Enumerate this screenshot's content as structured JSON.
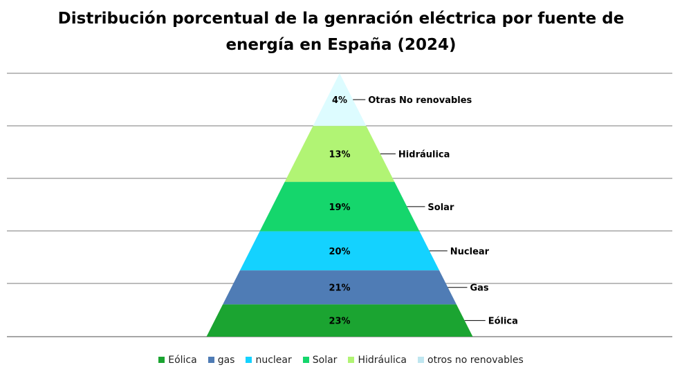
{
  "chart_data": {
    "type": "pyramid",
    "title_lines": [
      "Distribución porcentual de la genración eléctrica por fuente de",
      "energía en España (2024)"
    ],
    "segments_bottom_to_top": [
      {
        "label": "Eólica",
        "value": 23,
        "display": "23%",
        "color": "#1BA431"
      },
      {
        "label": "Gas",
        "value": 21,
        "display": "21%",
        "color": "#4F7CB5"
      },
      {
        "label": "Nuclear",
        "value": 20,
        "display": "20%",
        "color": "#14D2FF"
      },
      {
        "label": "Solar",
        "value": 19,
        "display": "19%",
        "color": "#15D66C"
      },
      {
        "label": "Hidráulica",
        "value": 13,
        "display": "13%",
        "color": "#B1F474"
      },
      {
        "label": "Otras No renovables",
        "value": 4,
        "display": "4%",
        "color": "#DDFCFF"
      }
    ],
    "legend": [
      {
        "label": "Eólica",
        "color": "#1BA431"
      },
      {
        "label": "gas",
        "color": "#4F7CB5"
      },
      {
        "label": "nuclear",
        "color": "#14D2FF"
      },
      {
        "label": "Solar",
        "color": "#15D66C"
      },
      {
        "label": "Hidráulica",
        "color": "#B1F474"
      },
      {
        "label": "otros no renovables",
        "color": "#BFE6F0"
      }
    ],
    "grid": true,
    "gridline_color": "#A6A6A6",
    "legend_position": "bottom"
  }
}
